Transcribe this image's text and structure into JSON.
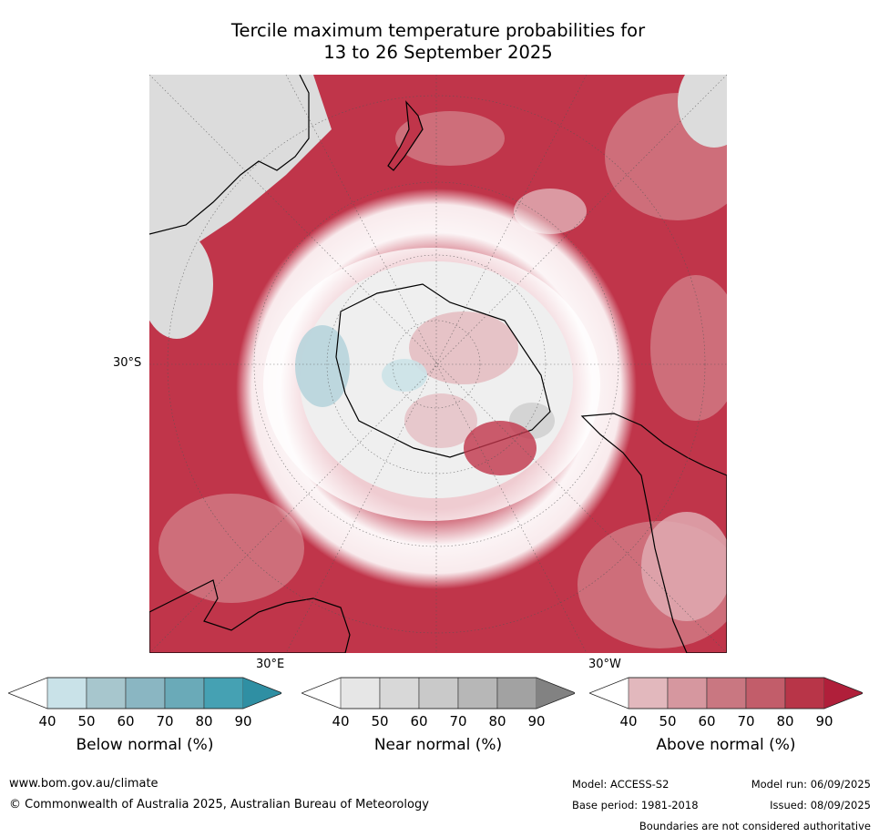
{
  "title": {
    "line1": "Tercile maximum temperature probabilities for",
    "line2": "13 to 26 September 2025"
  },
  "map_labels": {
    "lat_30s": "30°S",
    "lon_30e": "30°E",
    "lon_30w": "30°W"
  },
  "colorbars": [
    {
      "label": "Below normal (%)",
      "ticks": [
        "40",
        "50",
        "60",
        "70",
        "80",
        "90"
      ],
      "colors": [
        "#ffffff",
        "#c9e2e8",
        "#a7c6cd",
        "#8ab6c2",
        "#6aaab8",
        "#45a1b3",
        "#2f8fa3"
      ]
    },
    {
      "label": "Near normal (%)",
      "ticks": [
        "40",
        "50",
        "60",
        "70",
        "80",
        "90"
      ],
      "colors": [
        "#ffffff",
        "#e6e6e6",
        "#d8d8d8",
        "#c9c9c9",
        "#b7b7b7",
        "#a2a2a2",
        "#828282"
      ]
    },
    {
      "label": "Above normal (%)",
      "ticks": [
        "40",
        "50",
        "60",
        "70",
        "80",
        "90"
      ],
      "colors": [
        "#ffffff",
        "#e2b8bd",
        "#d6979f",
        "#c97781",
        "#c25d6a",
        "#b83548",
        "#b01f3a"
      ]
    }
  ],
  "footer": {
    "website": "www.bom.gov.au/climate",
    "copyright": "© Commonwealth of Australia 2025, Australian Bureau of Meteorology",
    "model": "Model: ACCESS-S2",
    "base_period": "Base period: 1981-2018",
    "model_run": "Model run: 06/09/2025",
    "issued": "Issued: 08/09/2025",
    "disclaimer": "Boundaries are not considered authoritative"
  }
}
